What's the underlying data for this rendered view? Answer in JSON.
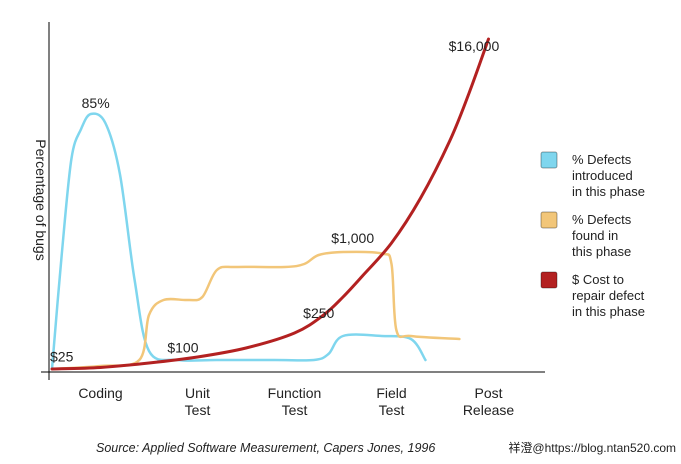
{
  "chart_data": {
    "type": "line",
    "ylabel": "Percentage of bugs",
    "categories": [
      "Coding",
      "Unit\nTest",
      "Function\nTest",
      "Field\nTest",
      "Post\nRelease"
    ],
    "series": [
      {
        "name": "% Defects introduced in this phase",
        "color": "#7fd6ee",
        "points": [
          {
            "x": 0.0,
            "y": 0
          },
          {
            "x": 0.1,
            "y": 38
          },
          {
            "x": 0.2,
            "y": 70
          },
          {
            "x": 0.3,
            "y": 80
          },
          {
            "x": 0.4,
            "y": 85
          },
          {
            "x": 0.55,
            "y": 82
          },
          {
            "x": 0.7,
            "y": 65
          },
          {
            "x": 0.85,
            "y": 30
          },
          {
            "x": 1.0,
            "y": 6
          },
          {
            "x": 1.3,
            "y": 3
          },
          {
            "x": 1.7,
            "y": 3
          },
          {
            "x": 2.3,
            "y": 3
          },
          {
            "x": 2.7,
            "y": 3
          },
          {
            "x": 2.85,
            "y": 5
          },
          {
            "x": 3.0,
            "y": 11
          },
          {
            "x": 3.4,
            "y": 11
          },
          {
            "x": 3.7,
            "y": 10
          },
          {
            "x": 3.85,
            "y": 3
          }
        ]
      },
      {
        "name": "% Defects found in this phase",
        "color": "#f2c679",
        "points": [
          {
            "x": 0.0,
            "y": 0
          },
          {
            "x": 0.5,
            "y": 1
          },
          {
            "x": 0.9,
            "y": 3
          },
          {
            "x": 1.0,
            "y": 18
          },
          {
            "x": 1.15,
            "y": 23
          },
          {
            "x": 1.4,
            "y": 23
          },
          {
            "x": 1.55,
            "y": 24
          },
          {
            "x": 1.7,
            "y": 33
          },
          {
            "x": 1.9,
            "y": 34
          },
          {
            "x": 2.4,
            "y": 34
          },
          {
            "x": 2.6,
            "y": 35
          },
          {
            "x": 2.75,
            "y": 38
          },
          {
            "x": 3.0,
            "y": 39
          },
          {
            "x": 3.4,
            "y": 38.5
          },
          {
            "x": 3.5,
            "y": 35
          },
          {
            "x": 3.55,
            "y": 13
          },
          {
            "x": 3.7,
            "y": 11
          },
          {
            "x": 4.2,
            "y": 10
          }
        ]
      },
      {
        "name": "$ Cost to repair defect in this phase",
        "color": "#b32121",
        "points": [
          {
            "x": 0.0,
            "y": 0
          },
          {
            "x": 0.5,
            "y": 0.5
          },
          {
            "x": 1.0,
            "y": 2
          },
          {
            "x": 1.5,
            "y": 4
          },
          {
            "x": 2.0,
            "y": 7
          },
          {
            "x": 2.5,
            "y": 12
          },
          {
            "x": 2.8,
            "y": 18
          },
          {
            "x": 3.0,
            "y": 24
          },
          {
            "x": 3.2,
            "y": 31
          },
          {
            "x": 3.5,
            "y": 42
          },
          {
            "x": 3.8,
            "y": 57
          },
          {
            "x": 4.1,
            "y": 76
          },
          {
            "x": 4.3,
            "y": 92
          },
          {
            "x": 4.5,
            "y": 110
          }
        ]
      }
    ],
    "annotations": [
      {
        "text": "85%",
        "x": 0.45,
        "y": 85
      },
      {
        "text": "$25",
        "x": 0.1,
        "y": 0.5
      },
      {
        "text": "$100",
        "x": 1.35,
        "y": 3.5
      },
      {
        "text": "$250",
        "x": 2.75,
        "y": 15
      },
      {
        "text": "$1,000",
        "x": 3.1,
        "y": 40
      },
      {
        "text": "$16,000",
        "x": 4.35,
        "y": 104
      }
    ],
    "legend": [
      {
        "text": "% Defects\nintroduced\nin this phase",
        "color": "#7fd6ee"
      },
      {
        "text": "% Defects\nfound in\nthis phase",
        "color": "#f2c679"
      },
      {
        "text": "$ Cost to\nrepair defect\nin this phase",
        "color": "#b32121"
      }
    ],
    "legend_position": "right",
    "grid": false
  },
  "source": "Source: Applied Software Measurement, Capers Jones, 1996",
  "watermark": "祥澄@https://blog.ntan520.com"
}
